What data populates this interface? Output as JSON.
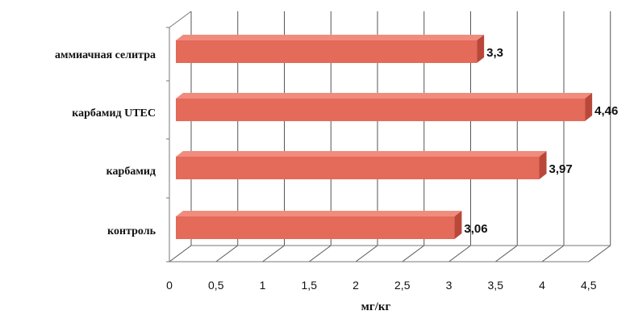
{
  "chart_data": {
    "type": "bar",
    "orientation": "horizontal",
    "three_d": true,
    "categories": [
      "аммиачная селитра",
      "карбамид UTEC",
      "карбамид",
      "контроль"
    ],
    "values": [
      3.3,
      4.46,
      3.97,
      3.06
    ],
    "value_labels": [
      "3,3",
      "4,46",
      "3,97",
      "3,06"
    ],
    "title": "",
    "xlabel": "мг/кг",
    "ylabel": "",
    "xlim": [
      0,
      4.5
    ],
    "xticks": [
      0,
      0.5,
      1,
      1.5,
      2,
      2.5,
      3,
      3.5,
      4,
      4.5
    ],
    "xtick_labels": [
      "0",
      "0,5",
      "1",
      "1,5",
      "2",
      "2,5",
      "3",
      "3,5",
      "4",
      "4,5"
    ],
    "grid": true,
    "legend": false,
    "colors": {
      "bar_front": "#e46a5a",
      "bar_top": "#f08c7e",
      "bar_side": "#b9473a",
      "grid": "#555555",
      "floor": "#777777"
    }
  }
}
